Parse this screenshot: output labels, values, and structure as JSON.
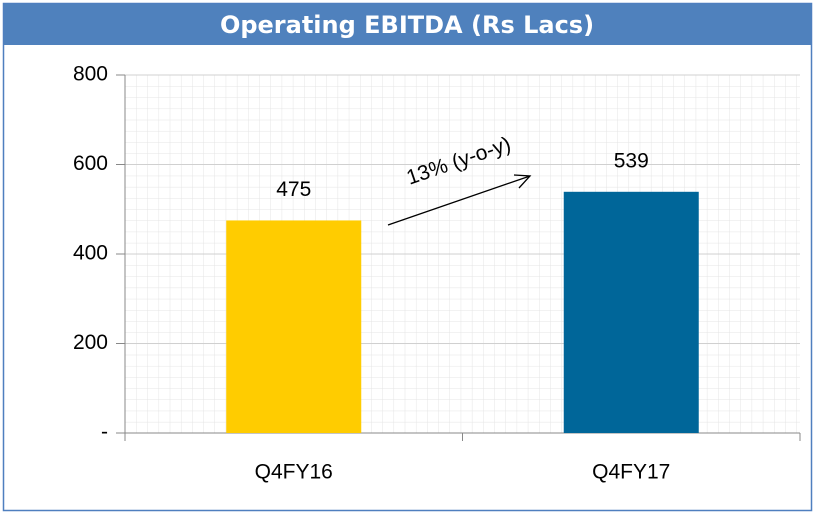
{
  "chart_data": {
    "type": "bar",
    "title": "Operating EBITDA (Rs Lacs)",
    "categories": [
      "Q4FY16",
      "Q4FY17"
    ],
    "values": [
      475,
      539
    ],
    "colors": [
      "#ffcc00",
      "#006699"
    ],
    "ylim": [
      0,
      800
    ],
    "yticks": [
      {
        "value": 0,
        "label": "-"
      },
      200,
      400,
      600,
      800
    ],
    "grid": true,
    "annotation": "13% (y-o-y)"
  }
}
